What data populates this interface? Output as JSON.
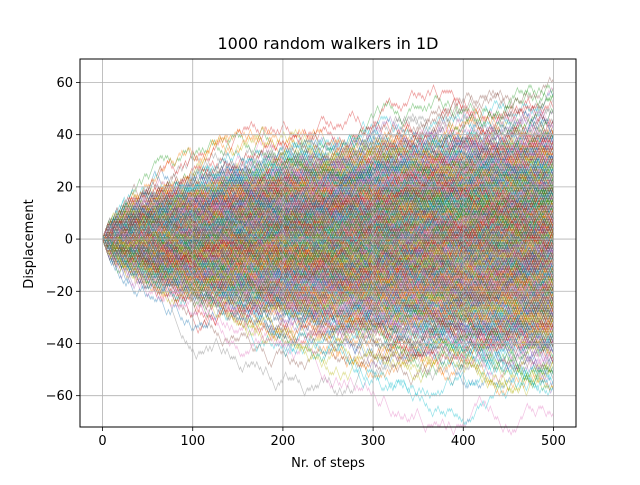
{
  "chart_data": {
    "type": "line",
    "title": "1000 random walkers in 1D",
    "xlabel": "Nr. of steps",
    "ylabel": "Displacement",
    "xlim": [
      -25,
      525
    ],
    "ylim": [
      -72,
      69
    ],
    "xticks": [
      0,
      100,
      200,
      300,
      400,
      500
    ],
    "yticks": [
      -60,
      -40,
      -20,
      0,
      20,
      40,
      60
    ],
    "xtick_labels": [
      "0",
      "100",
      "200",
      "300",
      "400",
      "500"
    ],
    "ytick_labels": [
      "−60",
      "−40",
      "−20",
      "0",
      "20",
      "40",
      "60"
    ],
    "grid": true,
    "legend": "none",
    "series_summary": {
      "walker_count": 1000,
      "steps": 500,
      "start_value": 0,
      "step_size": 1
    },
    "palette": [
      "#1f77b4",
      "#ff7f0e",
      "#2ca02c",
      "#d62728",
      "#9467bd",
      "#8c564b",
      "#e377c2",
      "#7f7f7f",
      "#bcbd22",
      "#17becf"
    ]
  }
}
